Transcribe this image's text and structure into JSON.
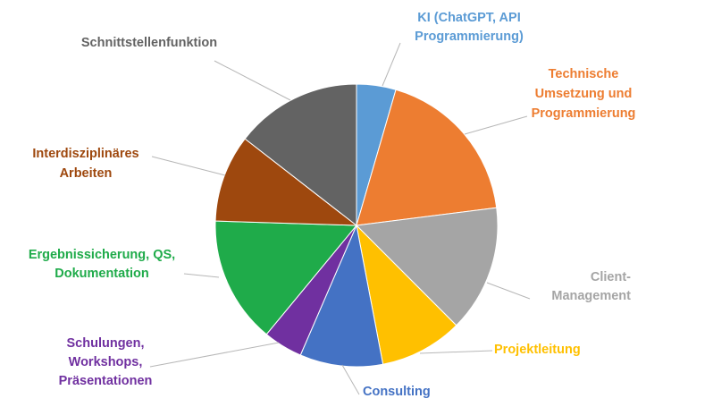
{
  "chart_data": {
    "type": "pie",
    "start_angle_deg": 0,
    "direction": "clockwise",
    "legend": "none",
    "slices": [
      {
        "label": [
          "KI (ChatGPT,  API",
          "Programmierung)"
        ],
        "value": 4.5,
        "color": "#5B9BD5"
      },
      {
        "label": [
          "Technische",
          "Umsetzung  und",
          "Programmierung"
        ],
        "value": 18.5,
        "color": "#ED7D31"
      },
      {
        "label": [
          "Client-",
          "Management"
        ],
        "value": 14.5,
        "color": "#A5A5A5"
      },
      {
        "label": [
          "Projektleitung"
        ],
        "value": 9.5,
        "color": "#FFC000"
      },
      {
        "label": [
          "Consulting"
        ],
        "value": 9.5,
        "color": "#4472C4"
      },
      {
        "label": [
          "Schulungen,",
          "Workshops,",
          "Präsentationen"
        ],
        "value": 4.5,
        "color": "#7030A0"
      },
      {
        "label": [
          "Ergebnissicherung, QS,",
          "Dokumentation"
        ],
        "value": 14.5,
        "color": "#1FAB4A"
      },
      {
        "label": [
          "Interdisziplinäres",
          "Arbeiten"
        ],
        "value": 10.0,
        "color": "#9E480E"
      },
      {
        "label": [
          "Schnittstellenfunktion"
        ],
        "value": 14.5,
        "color": "#636363"
      }
    ]
  }
}
